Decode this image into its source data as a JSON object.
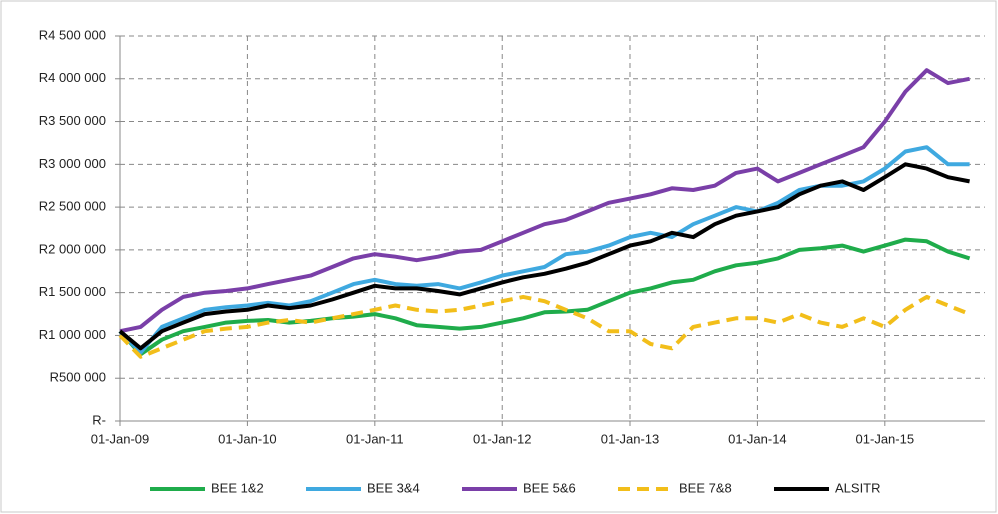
{
  "chart_data": {
    "type": "line",
    "x": [
      "2009-01-01",
      "2009-03-01",
      "2009-05-01",
      "2009-07-01",
      "2009-09-01",
      "2009-11-01",
      "2010-01-01",
      "2010-03-01",
      "2010-05-01",
      "2010-07-01",
      "2010-09-01",
      "2010-11-01",
      "2011-01-01",
      "2011-03-01",
      "2011-05-01",
      "2011-07-01",
      "2011-09-01",
      "2011-11-01",
      "2012-01-01",
      "2012-03-01",
      "2012-05-01",
      "2012-07-01",
      "2012-09-01",
      "2012-11-01",
      "2013-01-01",
      "2013-03-01",
      "2013-05-01",
      "2013-07-01",
      "2013-09-01",
      "2013-11-01",
      "2014-01-01",
      "2014-03-01",
      "2014-05-01",
      "2014-07-01",
      "2014-09-01",
      "2014-11-01",
      "2015-01-01",
      "2015-03-01",
      "2015-05-01",
      "2015-07-01",
      "2015-09-01"
    ],
    "xlim": [
      "2009-01-01",
      "2015-10-15"
    ],
    "xticks": [
      {
        "value": "2009-01-01",
        "label": "01-Jan-09"
      },
      {
        "value": "2010-01-01",
        "label": "01-Jan-10"
      },
      {
        "value": "2011-01-01",
        "label": "01-Jan-11"
      },
      {
        "value": "2012-01-01",
        "label": "01-Jan-12"
      },
      {
        "value": "2013-01-01",
        "label": "01-Jan-13"
      },
      {
        "value": "2014-01-01",
        "label": "01-Jan-14"
      },
      {
        "value": "2015-01-01",
        "label": "01-Jan-15"
      }
    ],
    "ylim": [
      0,
      4500000
    ],
    "yticks": [
      {
        "value": 0,
        "label": "R-"
      },
      {
        "value": 500000,
        "label": "R500 000"
      },
      {
        "value": 1000000,
        "label": "R1 000 000"
      },
      {
        "value": 1500000,
        "label": "R1 500 000"
      },
      {
        "value": 2000000,
        "label": "R2 000 000"
      },
      {
        "value": 2500000,
        "label": "R2 500 000"
      },
      {
        "value": 3000000,
        "label": "R3 000 000"
      },
      {
        "value": 3500000,
        "label": "R3 500 000"
      },
      {
        "value": 4000000,
        "label": "R4 000 000"
      },
      {
        "value": 4500000,
        "label": "R4 500 000"
      }
    ],
    "grid": true,
    "legend_position": "bottom",
    "series": [
      {
        "name": "BEE 1&2",
        "color": "#1fac4b",
        "line_style": "solid",
        "values": [
          1050000,
          780000,
          950000,
          1050000,
          1100000,
          1150000,
          1170000,
          1180000,
          1150000,
          1170000,
          1200000,
          1220000,
          1250000,
          1200000,
          1120000,
          1100000,
          1080000,
          1100000,
          1150000,
          1200000,
          1270000,
          1280000,
          1300000,
          1400000,
          1500000,
          1550000,
          1620000,
          1650000,
          1750000,
          1820000,
          1850000,
          1900000,
          2000000,
          2020000,
          2050000,
          1980000,
          2050000,
          2120000,
          2100000,
          1980000,
          1900000
        ]
      },
      {
        "name": "BEE 3&4",
        "color": "#3fa9e0",
        "line_style": "solid",
        "values": [
          1050000,
          800000,
          1100000,
          1200000,
          1300000,
          1330000,
          1350000,
          1380000,
          1350000,
          1400000,
          1500000,
          1600000,
          1650000,
          1600000,
          1580000,
          1600000,
          1550000,
          1620000,
          1700000,
          1750000,
          1800000,
          1950000,
          1980000,
          2050000,
          2150000,
          2200000,
          2150000,
          2300000,
          2400000,
          2500000,
          2450000,
          2550000,
          2700000,
          2750000,
          2750000,
          2800000,
          2950000,
          3150000,
          3200000,
          3000000,
          3000000
        ]
      },
      {
        "name": "BEE 5&6",
        "color": "#7a3fa8",
        "line_style": "solid",
        "values": [
          1050000,
          1100000,
          1300000,
          1450000,
          1500000,
          1520000,
          1550000,
          1600000,
          1650000,
          1700000,
          1800000,
          1900000,
          1950000,
          1920000,
          1880000,
          1920000,
          1980000,
          2000000,
          2100000,
          2200000,
          2300000,
          2350000,
          2450000,
          2550000,
          2600000,
          2650000,
          2720000,
          2700000,
          2750000,
          2900000,
          2950000,
          2800000,
          2900000,
          3000000,
          3100000,
          3200000,
          3500000,
          3850000,
          4100000,
          3950000,
          4000000
        ]
      },
      {
        "name": "BEE 7&8",
        "color": "#f2be1a",
        "line_style": "dashed",
        "values": [
          1000000,
          750000,
          850000,
          950000,
          1050000,
          1080000,
          1100000,
          1150000,
          1180000,
          1150000,
          1200000,
          1250000,
          1300000,
          1350000,
          1300000,
          1280000,
          1300000,
          1350000,
          1400000,
          1450000,
          1400000,
          1300000,
          1200000,
          1050000,
          1050000,
          900000,
          850000,
          1100000,
          1150000,
          1200000,
          1200000,
          1150000,
          1250000,
          1150000,
          1100000,
          1200000,
          1100000,
          1300000,
          1450000,
          1350000,
          1250000
        ]
      },
      {
        "name": "ALSITR",
        "color": "#000000",
        "line_style": "solid",
        "values": [
          1050000,
          850000,
          1050000,
          1150000,
          1250000,
          1280000,
          1300000,
          1350000,
          1320000,
          1350000,
          1420000,
          1500000,
          1580000,
          1550000,
          1550000,
          1520000,
          1480000,
          1550000,
          1620000,
          1680000,
          1720000,
          1780000,
          1850000,
          1950000,
          2050000,
          2100000,
          2200000,
          2150000,
          2300000,
          2400000,
          2450000,
          2500000,
          2650000,
          2750000,
          2800000,
          2700000,
          2850000,
          3000000,
          2950000,
          2850000,
          2800000
        ]
      }
    ]
  }
}
